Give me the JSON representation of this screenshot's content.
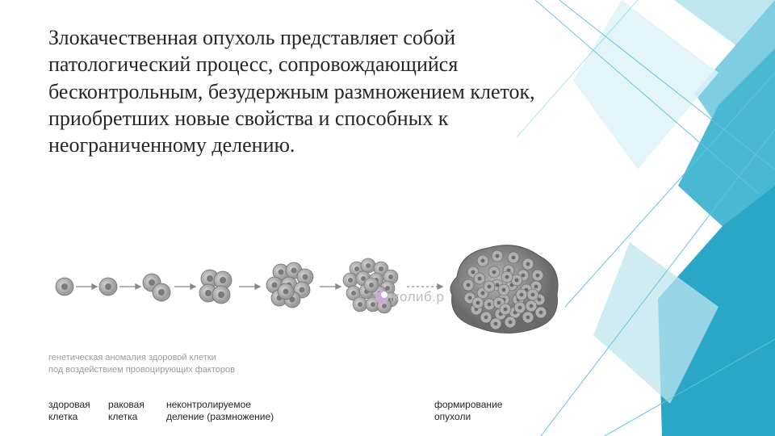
{
  "main_text": "Злокачественная опухоль представляет собой патологический процесс, сопровождающийся бесконтрольным, безудержным размножением клеток, приобретших новые свойства и способных к неограниченному делению.",
  "sub_caption_line1": "генетическая аномалия здоровой клетки",
  "sub_caption_line2": "под воздействием провоцирующих факторов",
  "labels": {
    "l1": "здоровая\nклетка",
    "l2": "раковая\nклетка",
    "l3": "неконтролируемое\nделение (размножение)",
    "l4": "формирование\nопухоли"
  },
  "watermark": "нколиб.р",
  "colors": {
    "text": "#262626",
    "subcaption": "#9a9a9a",
    "label": "#242424",
    "cell_fill": "#b8b8b8",
    "cell_stroke": "#6e6e6e",
    "cell_inner": "#888888",
    "arrow": "#888888",
    "tumor_fill": "#8f8f8f",
    "bg_poly1": "#bfe6ef",
    "bg_poly2": "#7ecde0",
    "bg_poly3": "#49b8d3",
    "bg_poly4": "#2aa6c6",
    "bg_poly5": "#dff3f8",
    "bg_line": "#67c3da"
  },
  "diagram": {
    "type": "flowchart",
    "stages": [
      {
        "id": "healthy",
        "cells": 1,
        "cluster_r": 14
      },
      {
        "id": "cancer",
        "cells": 1,
        "cluster_r": 14
      },
      {
        "id": "div2",
        "cells": 2,
        "cluster_r": 24
      },
      {
        "id": "div4",
        "cells": 4,
        "cluster_r": 30
      },
      {
        "id": "div9",
        "cells": 9,
        "cluster_r": 42
      },
      {
        "id": "div16",
        "cells": 16,
        "cluster_r": 56
      },
      {
        "id": "tumor",
        "cells": 60,
        "cluster_r": 80
      }
    ]
  }
}
